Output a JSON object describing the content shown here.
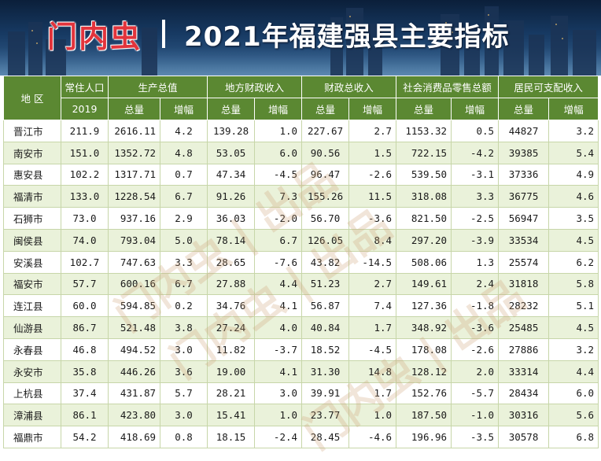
{
  "banner": {
    "brand": "门内虫",
    "separator": "|",
    "title": "2021年福建强县主要指标"
  },
  "watermark_text": "门内虫 | 出品",
  "table": {
    "header_top": {
      "region": "地 区",
      "population": "常住人口",
      "population_year": "2019",
      "gdp": "生产总值",
      "local_revenue": "地方财政收入",
      "total_revenue": "财政总收入",
      "retail": "社会消费品零售总额",
      "income": "居民可支配收入"
    },
    "header_sub": {
      "total": "总量",
      "growth": "增幅"
    },
    "rows": [
      {
        "name": "晋江市",
        "pop": "211.9",
        "gdp": "2616.11",
        "gdp_g": "4.2",
        "lr": "139.28",
        "lr_g": "1.0",
        "tr": "227.67",
        "tr_g": "2.7",
        "rt": "1153.32",
        "rt_g": "0.5",
        "inc": "44827",
        "inc_g": "3.2"
      },
      {
        "name": "南安市",
        "pop": "151.0",
        "gdp": "1352.72",
        "gdp_g": "4.8",
        "lr": "53.05",
        "lr_g": "6.0",
        "tr": "90.56",
        "tr_g": "1.5",
        "rt": "722.15",
        "rt_g": "-4.2",
        "inc": "39385",
        "inc_g": "5.4"
      },
      {
        "name": "惠安县",
        "pop": "102.2",
        "gdp": "1317.71",
        "gdp_g": "0.7",
        "lr": "47.34",
        "lr_g": "-4.5",
        "tr": "96.47",
        "tr_g": "-2.6",
        "rt": "539.50",
        "rt_g": "-3.1",
        "inc": "37336",
        "inc_g": "4.9"
      },
      {
        "name": "福清市",
        "pop": "133.0",
        "gdp": "1228.54",
        "gdp_g": "6.7",
        "lr": "91.26",
        "lr_g": "7.3",
        "tr": "155.26",
        "tr_g": "11.5",
        "rt": "318.08",
        "rt_g": "3.3",
        "inc": "36775",
        "inc_g": "4.6"
      },
      {
        "name": "石狮市",
        "pop": "73.0",
        "gdp": "937.16",
        "gdp_g": "2.9",
        "lr": "36.03",
        "lr_g": "-2.0",
        "tr": "56.70",
        "tr_g": "-3.6",
        "rt": "821.50",
        "rt_g": "-2.5",
        "inc": "56947",
        "inc_g": "3.5"
      },
      {
        "name": "闽侯县",
        "pop": "74.0",
        "gdp": "793.04",
        "gdp_g": "5.0",
        "lr": "78.14",
        "lr_g": "6.7",
        "tr": "126.05",
        "tr_g": "8.4",
        "rt": "297.20",
        "rt_g": "-3.9",
        "inc": "33534",
        "inc_g": "4.5"
      },
      {
        "name": "安溪县",
        "pop": "102.7",
        "gdp": "747.63",
        "gdp_g": "3.3",
        "lr": "28.65",
        "lr_g": "-7.6",
        "tr": "43.82",
        "tr_g": "-14.5",
        "rt": "508.06",
        "rt_g": "1.3",
        "inc": "25574",
        "inc_g": "6.2"
      },
      {
        "name": "福安市",
        "pop": "57.7",
        "gdp": "600.16",
        "gdp_g": "6.7",
        "lr": "27.88",
        "lr_g": "4.4",
        "tr": "51.23",
        "tr_g": "2.7",
        "rt": "149.61",
        "rt_g": "2.4",
        "inc": "31818",
        "inc_g": "5.8"
      },
      {
        "name": "连江县",
        "pop": "60.0",
        "gdp": "594.85",
        "gdp_g": "0.2",
        "lr": "34.76",
        "lr_g": "4.1",
        "tr": "56.87",
        "tr_g": "7.4",
        "rt": "127.36",
        "rt_g": "-1.8",
        "inc": "28232",
        "inc_g": "5.1"
      },
      {
        "name": "仙游县",
        "pop": "86.7",
        "gdp": "521.48",
        "gdp_g": "3.8",
        "lr": "27.24",
        "lr_g": "4.0",
        "tr": "40.84",
        "tr_g": "1.7",
        "rt": "348.92",
        "rt_g": "-3.6",
        "inc": "25485",
        "inc_g": "4.5"
      },
      {
        "name": "永春县",
        "pop": "46.8",
        "gdp": "494.52",
        "gdp_g": "3.0",
        "lr": "11.82",
        "lr_g": "-3.7",
        "tr": "18.52",
        "tr_g": "-4.5",
        "rt": "178.08",
        "rt_g": "-2.6",
        "inc": "27886",
        "inc_g": "3.2"
      },
      {
        "name": "永安市",
        "pop": "35.8",
        "gdp": "446.26",
        "gdp_g": "3.6",
        "lr": "19.00",
        "lr_g": "4.1",
        "tr": "31.30",
        "tr_g": "14.8",
        "rt": "128.12",
        "rt_g": "2.0",
        "inc": "33314",
        "inc_g": "4.4"
      },
      {
        "name": "上杭县",
        "pop": "37.4",
        "gdp": "431.87",
        "gdp_g": "5.7",
        "lr": "28.21",
        "lr_g": "3.0",
        "tr": "39.91",
        "tr_g": "1.7",
        "rt": "152.76",
        "rt_g": "-5.7",
        "inc": "28434",
        "inc_g": "6.0"
      },
      {
        "name": "漳浦县",
        "pop": "86.1",
        "gdp": "423.80",
        "gdp_g": "3.0",
        "lr": "15.41",
        "lr_g": "1.0",
        "tr": "23.77",
        "tr_g": "1.0",
        "rt": "187.50",
        "rt_g": "-1.0",
        "inc": "30316",
        "inc_g": "5.6"
      },
      {
        "name": "福鼎市",
        "pop": "54.2",
        "gdp": "418.69",
        "gdp_g": "0.8",
        "lr": "18.15",
        "lr_g": "-2.4",
        "tr": "28.45",
        "tr_g": "-4.6",
        "rt": "196.96",
        "rt_g": "-3.5",
        "inc": "30578",
        "inc_g": "6.8"
      }
    ]
  },
  "colors": {
    "header_bg": "#5b8832",
    "row_alt_bg": "#eaf2da",
    "brand_red": "#e2343c",
    "banner_dark": "#0b1f3a"
  }
}
